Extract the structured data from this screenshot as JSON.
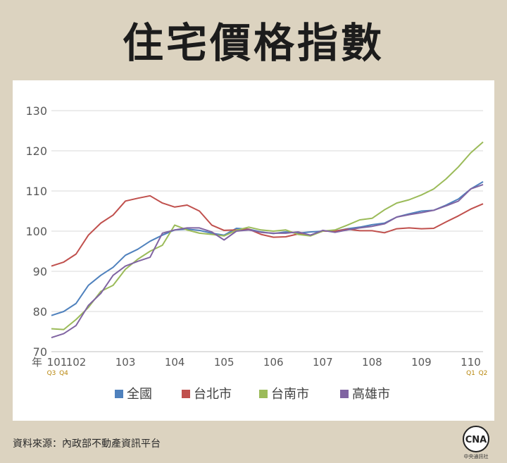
{
  "title": "住宅價格指數",
  "source": "資料來源：內政部不動產資訊平台",
  "logo": {
    "name": "CNA",
    "label": "中央通訊社"
  },
  "chart_data": {
    "type": "line",
    "title": "住宅價格指數",
    "xlabel": "年",
    "ylabel": "",
    "ylim": [
      70,
      130
    ],
    "yticks": [
      70,
      80,
      90,
      100,
      110,
      120,
      130
    ],
    "year_ticks": [
      {
        "label": "101",
        "q": 0
      },
      {
        "label": "102",
        "q": 2
      },
      {
        "label": "103",
        "q": 6
      },
      {
        "label": "104",
        "q": 10
      },
      {
        "label": "105",
        "q": 14
      },
      {
        "label": "106",
        "q": 18
      },
      {
        "label": "107",
        "q": 22
      },
      {
        "label": "108",
        "q": 26
      },
      {
        "label": "109",
        "q": 30
      },
      {
        "label": "110",
        "q": 34
      }
    ],
    "quarter_notes": [
      {
        "label": "Q3",
        "q": 0
      },
      {
        "label": "Q4",
        "q": 1
      },
      {
        "label": "Q1",
        "q": 34
      },
      {
        "label": "Q2",
        "q": 35
      }
    ],
    "x": [
      "101Q3",
      "101Q4",
      "102Q1",
      "102Q2",
      "102Q3",
      "102Q4",
      "103Q1",
      "103Q2",
      "103Q3",
      "103Q4",
      "104Q1",
      "104Q2",
      "104Q3",
      "104Q4",
      "105Q1",
      "105Q2",
      "105Q3",
      "105Q4",
      "106Q1",
      "106Q2",
      "106Q3",
      "106Q4",
      "107Q1",
      "107Q2",
      "107Q3",
      "107Q4",
      "108Q1",
      "108Q2",
      "108Q3",
      "108Q4",
      "109Q1",
      "109Q2",
      "109Q3",
      "109Q4",
      "110Q1",
      "110Q2"
    ],
    "grid": "horizontal",
    "legend": "bottom",
    "series": [
      {
        "name": "全國",
        "color": "#4f81bd",
        "values": [
          79,
          80,
          82,
          86.5,
          89,
          91,
          94,
          95.5,
          97.5,
          99,
          100.3,
          100.5,
          100.2,
          99.5,
          99,
          100.7,
          100.5,
          99.8,
          99.4,
          99.8,
          99.5,
          99.8,
          100,
          100,
          100.6,
          101,
          101.6,
          102,
          103.5,
          104.3,
          105,
          105.2,
          106.5,
          108,
          110.5,
          112.3
        ]
      },
      {
        "name": "台北市",
        "color": "#c0504d",
        "values": [
          91.3,
          92.3,
          94.3,
          99,
          102,
          104,
          107.5,
          108.2,
          108.8,
          107,
          106,
          106.5,
          105,
          101.5,
          100.2,
          100.3,
          100.5,
          99.2,
          98.5,
          98.6,
          99.3,
          99,
          100,
          100,
          100.5,
          100.1,
          100.1,
          99.6,
          100.6,
          100.8,
          100.6,
          100.7,
          102.3,
          103.8,
          105.5,
          106.8
        ]
      },
      {
        "name": "台南市",
        "color": "#9bbb59",
        "values": [
          75.7,
          75.5,
          78,
          81,
          85,
          86.5,
          90.5,
          93,
          95,
          96.5,
          101.5,
          100.3,
          99.5,
          99.2,
          98.8,
          100.2,
          101,
          100.3,
          100,
          100.3,
          99.2,
          98.8,
          100,
          100.3,
          101.5,
          102.8,
          103.2,
          105.3,
          107,
          107.8,
          109,
          110.5,
          113,
          116,
          119.5,
          122.2
        ]
      },
      {
        "name": "高雄市",
        "color": "#8064a2",
        "values": [
          73.5,
          74.5,
          76.5,
          81.5,
          84.5,
          89,
          91.3,
          92.5,
          93.5,
          99.5,
          100.3,
          100.8,
          100.8,
          99.8,
          97.8,
          100,
          100.3,
          99.7,
          99.5,
          99.5,
          99.8,
          99,
          100.2,
          99.7,
          100.3,
          100.8,
          101.2,
          101.8,
          103.5,
          104.1,
          104.6,
          105.2,
          106.3,
          107.5,
          110.5,
          111.6
        ]
      }
    ]
  }
}
